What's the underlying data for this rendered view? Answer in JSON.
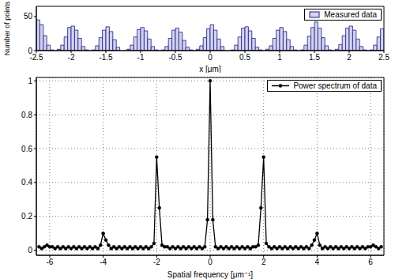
{
  "chart_data": [
    {
      "type": "histogram",
      "xlabel": "x [μm]",
      "ylabel": "Number of points",
      "bins": [
        -2.5,
        -2.45,
        -2.4,
        -2.35,
        -2.3,
        -2.25,
        -2.2,
        -2.15,
        -2.1,
        -2.05,
        -2,
        -1.95,
        -1.9,
        -1.85,
        -1.8,
        -1.75,
        -1.7,
        -1.65,
        -1.6,
        -1.55,
        -1.5,
        -1.45,
        -1.4,
        -1.35,
        -1.3,
        -1.25,
        -1.2,
        -1.15,
        -1.1,
        -1.05,
        -1,
        -0.95,
        -0.9,
        -0.85,
        -0.8,
        -0.75,
        -0.7,
        -0.65,
        -0.6,
        -0.55,
        -0.5,
        -0.45,
        -0.4,
        -0.35,
        -0.3,
        -0.25,
        -0.2,
        -0.15,
        -0.1,
        -0.05,
        0,
        0.05,
        0.1,
        0.15,
        0.2,
        0.25,
        0.3,
        0.35,
        0.4,
        0.45,
        0.5,
        0.55,
        0.6,
        0.65,
        0.7,
        0.75,
        0.8,
        0.85,
        0.9,
        0.95,
        1,
        1.05,
        1.1,
        1.15,
        1.2,
        1.25,
        1.3,
        1.35,
        1.4,
        1.45,
        1.5,
        1.55,
        1.6,
        1.65,
        1.7,
        1.75,
        1.8,
        1.85,
        1.9,
        1.95,
        2,
        2.05,
        2.1,
        2.15,
        2.2,
        2.25,
        2.3,
        2.35,
        2.4,
        2.45,
        2.5
      ],
      "series": [
        {
          "name": "Measured data",
          "color": "#d4d4f0",
          "values": [
            45,
            38,
            22,
            8,
            1,
            0,
            2,
            8,
            20,
            34,
            36,
            30,
            18,
            6,
            1,
            0,
            1,
            7,
            19,
            30,
            35,
            28,
            16,
            5,
            0,
            0,
            2,
            8,
            20,
            31,
            34,
            29,
            17,
            6,
            1,
            0,
            1,
            6,
            18,
            30,
            33,
            27,
            15,
            5,
            1,
            0,
            2,
            7,
            19,
            32,
            38,
            30,
            17,
            6,
            0,
            0,
            1,
            8,
            20,
            33,
            35,
            29,
            18,
            5,
            1,
            0,
            2,
            7,
            18,
            30,
            34,
            28,
            16,
            6,
            1,
            0,
            1,
            8,
            21,
            34,
            42,
            33,
            19,
            7,
            1,
            0,
            2,
            9,
            22,
            33,
            36,
            30,
            17,
            6,
            1,
            0,
            1,
            8,
            20,
            32
          ]
        }
      ],
      "xlim": [
        -2.5,
        2.5
      ],
      "xticks": [
        -2.5,
        -2,
        -1.5,
        -1,
        -0.5,
        0,
        0.5,
        1,
        1.5,
        2,
        2.5
      ],
      "ylim": [
        0,
        65
      ],
      "yticks": [
        0,
        50
      ],
      "grid": false,
      "legend": "upper right"
    },
    {
      "type": "line",
      "xlabel": "Spatial frequency [μm⁻¹]",
      "x": [
        -6.4,
        -6.3,
        -6.2,
        -6.1,
        -6,
        -5.9,
        -5.8,
        -5.7,
        -5.6,
        -5.5,
        -5.4,
        -5.3,
        -5.2,
        -5.1,
        -5,
        -4.9,
        -4.8,
        -4.7,
        -4.6,
        -4.5,
        -4.4,
        -4.3,
        -4.2,
        -4.1,
        -4,
        -3.9,
        -3.8,
        -3.7,
        -3.6,
        -3.5,
        -3.4,
        -3.3,
        -3.2,
        -3.1,
        -3,
        -2.9,
        -2.8,
        -2.7,
        -2.6,
        -2.5,
        -2.4,
        -2.3,
        -2.2,
        -2.1,
        -2,
        -1.9,
        -1.8,
        -1.7,
        -1.6,
        -1.5,
        -1.4,
        -1.3,
        -1.2,
        -1.1,
        -1,
        -0.9,
        -0.8,
        -0.7,
        -0.6,
        -0.5,
        -0.4,
        -0.3,
        -0.2,
        -0.1,
        0,
        0.1,
        0.2,
        0.3,
        0.4,
        0.5,
        0.6,
        0.7,
        0.8,
        0.9,
        1,
        1.1,
        1.2,
        1.3,
        1.4,
        1.5,
        1.6,
        1.7,
        1.8,
        1.9,
        2,
        2.1,
        2.2,
        2.3,
        2.4,
        2.5,
        2.6,
        2.7,
        2.8,
        2.9,
        3,
        3.1,
        3.2,
        3.3,
        3.4,
        3.5,
        3.6,
        3.7,
        3.8,
        3.9,
        4,
        4.1,
        4.2,
        4.3,
        4.4,
        4.5,
        4.6,
        4.7,
        4.8,
        4.9,
        5,
        5.1,
        5.2,
        5.3,
        5.4,
        5.5,
        5.6,
        5.7,
        5.8,
        5.9,
        6,
        6.1,
        6.2,
        6.3,
        6.4
      ],
      "series": [
        {
          "name": "Power spectrum of data",
          "color": "#000000",
          "marker": "o",
          "line_style": "solid",
          "values": [
            0.02,
            0.01,
            0.02,
            0.03,
            0.02,
            0.02,
            0.01,
            0.02,
            0.01,
            0.02,
            0.01,
            0.02,
            0.01,
            0.02,
            0.01,
            0.02,
            0.01,
            0.02,
            0.01,
            0.02,
            0.01,
            0.02,
            0.01,
            0.03,
            0.1,
            0.06,
            0.03,
            0.01,
            0.02,
            0.01,
            0.02,
            0.01,
            0.02,
            0.01,
            0.02,
            0.01,
            0.02,
            0.01,
            0.02,
            0.01,
            0.02,
            0.01,
            0.02,
            0.04,
            0.55,
            0.25,
            0.03,
            0.02,
            0.02,
            0.01,
            0.02,
            0.01,
            0.02,
            0.01,
            0.02,
            0.01,
            0.02,
            0.01,
            0.02,
            0.01,
            0.02,
            0.01,
            0.02,
            0.18,
            1,
            0.18,
            0.02,
            0.01,
            0.02,
            0.01,
            0.02,
            0.01,
            0.02,
            0.01,
            0.02,
            0.01,
            0.02,
            0.01,
            0.02,
            0.01,
            0.02,
            0.02,
            0.03,
            0.25,
            0.55,
            0.04,
            0.02,
            0.01,
            0.02,
            0.01,
            0.02,
            0.01,
            0.02,
            0.01,
            0.02,
            0.01,
            0.02,
            0.01,
            0.02,
            0.01,
            0.02,
            0.01,
            0.03,
            0.06,
            0.1,
            0.03,
            0.01,
            0.02,
            0.01,
            0.02,
            0.01,
            0.02,
            0.01,
            0.02,
            0.01,
            0.02,
            0.01,
            0.02,
            0.01,
            0.02,
            0.01,
            0.02,
            0.01,
            0.02,
            0.02,
            0.03,
            0.02,
            0.01,
            0.02
          ]
        }
      ],
      "xlim": [
        -6.5,
        6.5
      ],
      "xticks": [
        -6,
        -4,
        -2,
        0,
        2,
        4,
        6
      ],
      "ylim": [
        -0.03,
        1.02
      ],
      "yticks": [
        0,
        0.2,
        0.4,
        0.6,
        0.8,
        1
      ],
      "grid": true,
      "legend": "upper right"
    }
  ]
}
